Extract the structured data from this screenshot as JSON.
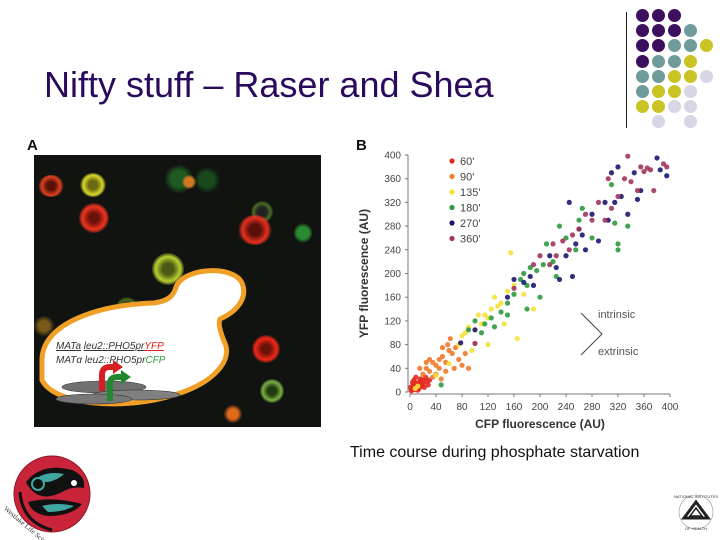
{
  "slide": {
    "title": "Nifty stuff – Raser and Shea",
    "caption": "Time course during phosphate starvation"
  },
  "decor": {
    "dot_grid_colors": {
      "purple": "#3d0f5f",
      "teal": "#6f9b9b",
      "olive": "#c9c424",
      "lavender": "#d6d6e6"
    },
    "dot_grid": [
      [
        "purple",
        "purple",
        "purple",
        null,
        null
      ],
      [
        "purple",
        "purple",
        "purple",
        "teal",
        null
      ],
      [
        "purple",
        "purple",
        "teal",
        "teal",
        "olive"
      ],
      [
        "purple",
        "teal",
        "teal",
        "olive",
        null
      ],
      [
        "teal",
        "teal",
        "olive",
        "olive",
        "lavender"
      ],
      [
        "teal",
        "olive",
        "olive",
        "lavender",
        null
      ],
      [
        "olive",
        "olive",
        "lavender",
        "lavender",
        null
      ],
      [
        null,
        "lavender",
        null,
        "lavender",
        null
      ]
    ]
  },
  "panel_a": {
    "label": "A",
    "genotype_line1_prefix": "MATa",
    "genotype_line1_gene": "leu2::PHO5pr",
    "genotype_line1_reporter": "YFP",
    "genotype_line2_prefix": "MATα",
    "genotype_line2_gene": "leu2::PHO5pr",
    "genotype_line2_reporter": "CFP"
  },
  "panel_b": {
    "label": "B",
    "annotation_intrinsic": "intrinsic",
    "annotation_extrinsic": "extrinsic"
  },
  "logos": {
    "left_text": "Westlake Life Sciences Center",
    "right_text": "NATIONAL INSTITUTES OF HEALTH"
  },
  "chart_data": {
    "type": "scatter",
    "title": "",
    "xlabel": "CFP fluorescence (AU)",
    "ylabel": "YFP fluorescence (AU)",
    "xlim": [
      0,
      400
    ],
    "ylim": [
      0,
      400
    ],
    "xticks": [
      0,
      40,
      80,
      120,
      160,
      200,
      240,
      280,
      320,
      360,
      400
    ],
    "yticks": [
      0,
      40,
      80,
      120,
      160,
      200,
      240,
      280,
      320,
      360,
      400
    ],
    "grid": false,
    "legend_position": "upper-left",
    "series": [
      {
        "name": "60'",
        "color": "#e2281c",
        "points": [
          [
            3,
            5
          ],
          [
            5,
            12
          ],
          [
            8,
            8
          ],
          [
            10,
            15
          ],
          [
            12,
            3
          ],
          [
            15,
            18
          ],
          [
            18,
            10
          ],
          [
            6,
            20
          ],
          [
            14,
            6
          ],
          [
            20,
            14
          ],
          [
            2,
            2
          ],
          [
            9,
            25
          ],
          [
            16,
            22
          ],
          [
            22,
            8
          ],
          [
            11,
            11
          ],
          [
            25,
            18
          ],
          [
            4,
            16
          ],
          [
            7,
            4
          ],
          [
            19,
            20
          ],
          [
            13,
            13
          ],
          [
            28,
            12
          ],
          [
            30,
            20
          ],
          [
            1,
            8
          ],
          [
            24,
            25
          ]
        ]
      },
      {
        "name": "90'",
        "color": "#f07a2a",
        "points": [
          [
            20,
            30
          ],
          [
            25,
            40
          ],
          [
            30,
            35
          ],
          [
            35,
            50
          ],
          [
            40,
            45
          ],
          [
            45,
            55
          ],
          [
            30,
            55
          ],
          [
            50,
            60
          ],
          [
            55,
            50
          ],
          [
            60,
            70
          ],
          [
            65,
            65
          ],
          [
            40,
            30
          ],
          [
            35,
            25
          ],
          [
            45,
            40
          ],
          [
            70,
            75
          ],
          [
            62,
            90
          ],
          [
            75,
            55
          ],
          [
            80,
            45
          ],
          [
            55,
            35
          ],
          [
            25,
            50
          ],
          [
            50,
            75
          ],
          [
            68,
            40
          ],
          [
            85,
            65
          ],
          [
            90,
            40
          ],
          [
            15,
            40
          ],
          [
            48,
            22
          ],
          [
            58,
            80
          ],
          [
            100,
            82
          ]
        ]
      },
      {
        "name": "135'",
        "color": "#f4e23a",
        "points": [
          [
            75,
            80
          ],
          [
            80,
            95
          ],
          [
            85,
            100
          ],
          [
            90,
            110
          ],
          [
            100,
            105
          ],
          [
            110,
            115
          ],
          [
            115,
            130
          ],
          [
            120,
            125
          ],
          [
            125,
            140
          ],
          [
            130,
            160
          ],
          [
            135,
            145
          ],
          [
            140,
            150
          ],
          [
            150,
            170
          ],
          [
            160,
            180
          ],
          [
            155,
            235
          ],
          [
            165,
            90
          ],
          [
            120,
            80
          ],
          [
            95,
            70
          ],
          [
            105,
            130
          ],
          [
            145,
            115
          ],
          [
            175,
            165
          ],
          [
            190,
            140
          ],
          [
            8,
            6
          ],
          [
            12,
            10
          ],
          [
            60,
            48
          ],
          [
            40,
            28
          ]
        ]
      },
      {
        "name": "180'",
        "color": "#2e9a3e",
        "points": [
          [
            90,
            105
          ],
          [
            100,
            120
          ],
          [
            110,
            100
          ],
          [
            115,
            115
          ],
          [
            125,
            125
          ],
          [
            130,
            110
          ],
          [
            140,
            135
          ],
          [
            150,
            150
          ],
          [
            160,
            165
          ],
          [
            170,
            190
          ],
          [
            175,
            200
          ],
          [
            180,
            180
          ],
          [
            185,
            210
          ],
          [
            195,
            205
          ],
          [
            205,
            215
          ],
          [
            210,
            250
          ],
          [
            220,
            220
          ],
          [
            230,
            280
          ],
          [
            240,
            260
          ],
          [
            255,
            240
          ],
          [
            260,
            290
          ],
          [
            265,
            310
          ],
          [
            280,
            260
          ],
          [
            310,
            350
          ],
          [
            315,
            285
          ],
          [
            320,
            250
          ],
          [
            335,
            280
          ],
          [
            320,
            240
          ],
          [
            48,
            12
          ],
          [
            200,
            160
          ],
          [
            180,
            140
          ],
          [
            225,
            195
          ],
          [
            150,
            130
          ]
        ]
      },
      {
        "name": "270'",
        "color": "#1b1770",
        "points": [
          [
            78,
            83
          ],
          [
            100,
            105
          ],
          [
            150,
            160
          ],
          [
            160,
            190
          ],
          [
            175,
            185
          ],
          [
            185,
            195
          ],
          [
            190,
            180
          ],
          [
            215,
            230
          ],
          [
            225,
            210
          ],
          [
            230,
            190
          ],
          [
            245,
            320
          ],
          [
            250,
            195
          ],
          [
            255,
            250
          ],
          [
            260,
            275
          ],
          [
            270,
            240
          ],
          [
            280,
            300
          ],
          [
            290,
            255
          ],
          [
            300,
            320
          ],
          [
            305,
            290
          ],
          [
            310,
            370
          ],
          [
            315,
            320
          ],
          [
            320,
            380
          ],
          [
            325,
            330
          ],
          [
            335,
            300
          ],
          [
            345,
            370
          ],
          [
            350,
            325
          ],
          [
            355,
            340
          ],
          [
            380,
            395
          ],
          [
            385,
            375
          ],
          [
            395,
            365
          ],
          [
            240,
            230
          ],
          [
            265,
            265
          ]
        ]
      },
      {
        "name": "360'",
        "color": "#a2345e",
        "points": [
          [
            100,
            82
          ],
          [
            160,
            175
          ],
          [
            190,
            215
          ],
          [
            200,
            230
          ],
          [
            215,
            215
          ],
          [
            220,
            250
          ],
          [
            235,
            255
          ],
          [
            250,
            265
          ],
          [
            260,
            275
          ],
          [
            270,
            300
          ],
          [
            280,
            290
          ],
          [
            290,
            320
          ],
          [
            300,
            290
          ],
          [
            305,
            360
          ],
          [
            310,
            310
          ],
          [
            320,
            330
          ],
          [
            330,
            360
          ],
          [
            335,
            398
          ],
          [
            340,
            355
          ],
          [
            350,
            340
          ],
          [
            355,
            380
          ],
          [
            360,
            372
          ],
          [
            365,
            378
          ],
          [
            370,
            375
          ],
          [
            375,
            340
          ],
          [
            390,
            385
          ],
          [
            395,
            380
          ],
          [
            225,
            230
          ],
          [
            245,
            240
          ]
        ]
      }
    ]
  }
}
